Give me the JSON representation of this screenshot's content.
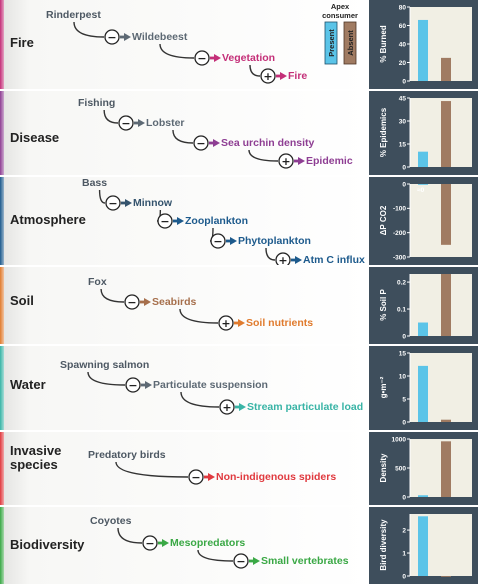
{
  "legend": {
    "title": "Apex consumer",
    "present": "Present",
    "absent": "Absent"
  },
  "colors": {
    "present": "#5bc4e8",
    "absent": "#a07b62",
    "panel": "#3e4e5c",
    "plotbg": "#f1efe4"
  },
  "rows": [
    {
      "name": "fire",
      "title": [
        "Fire"
      ],
      "color": "#c42f78",
      "chain": [
        {
          "label": "Rinderpest",
          "color": "#4d5863"
        },
        {
          "label": "Wildebeest",
          "color": "#5d6974"
        },
        {
          "label": "Vegetation",
          "color": "#c42f78"
        },
        {
          "label": "Fire",
          "color": "#c42f78"
        }
      ],
      "signs": [
        "−",
        "−",
        "+"
      ]
    },
    {
      "name": "disease",
      "title": [
        "Disease"
      ],
      "color": "#8e3e93",
      "chain": [
        {
          "label": "Fishing",
          "color": "#4d5863"
        },
        {
          "label": "Lobster",
          "color": "#5d6974"
        },
        {
          "label": "Sea urchin density",
          "color": "#8e3e93"
        },
        {
          "label": "Epidemic",
          "color": "#8e3e93"
        }
      ],
      "signs": [
        "−",
        "−",
        "+"
      ]
    },
    {
      "name": "atmosphere",
      "title": [
        "Atmosphere"
      ],
      "color": "#1d5a8c",
      "chain": [
        {
          "label": "Bass",
          "color": "#4d5863"
        },
        {
          "label": "Minnow",
          "color": "#34536d"
        },
        {
          "label": "Zooplankton",
          "color": "#1d5a8c"
        },
        {
          "label": "Phytoplankton",
          "color": "#1d5a8c"
        },
        {
          "label": "Atm C influx",
          "color": "#1d5a8c"
        }
      ],
      "signs": [
        "−",
        "−",
        "−",
        "+"
      ]
    },
    {
      "name": "soil",
      "title": [
        "Soil"
      ],
      "color": "#e07b2e",
      "chain": [
        {
          "label": "Fox",
          "color": "#4d5863"
        },
        {
          "label": "Seabirds",
          "color": "#a66f4c"
        },
        {
          "label": "Soil nutrients",
          "color": "#e07b2e"
        }
      ],
      "signs": [
        "−",
        "+"
      ]
    },
    {
      "name": "water",
      "title": [
        "Water"
      ],
      "color": "#39b4a6",
      "chain": [
        {
          "label": "Spawning salmon",
          "color": "#4d5863"
        },
        {
          "label": "Particulate suspension",
          "color": "#5d6974"
        },
        {
          "label": "Stream particulate load",
          "color": "#39b4a6"
        }
      ],
      "signs": [
        "−",
        "+"
      ]
    },
    {
      "name": "invasive",
      "title": [
        "Invasive",
        "species"
      ],
      "color": "#e0393e",
      "chain": [
        {
          "label": "Predatory birds",
          "color": "#4d5863"
        },
        {
          "label": "Non-indigenous spiders",
          "color": "#e0393e"
        }
      ],
      "signs": [
        "−"
      ]
    },
    {
      "name": "biodiversity",
      "title": [
        "Biodiversity"
      ],
      "color": "#3aa845",
      "chain": [
        {
          "label": "Coyotes",
          "color": "#4d5863"
        },
        {
          "label": "Mesopredators",
          "color": "#3aa845"
        },
        {
          "label": "Small vertebrates",
          "color": "#3aa845"
        }
      ],
      "signs": [
        "−",
        "−"
      ]
    }
  ],
  "chart_data": [
    {
      "type": "bar",
      "ylabel": "% Burned",
      "ylim": [
        0,
        80
      ],
      "ticks": [
        0,
        20,
        40,
        60,
        80
      ],
      "tick_labels": [
        "0",
        "20",
        "40",
        "60",
        "80"
      ],
      "values": [
        66,
        25
      ]
    },
    {
      "type": "bar",
      "ylabel": "% Epidemics",
      "ylim": [
        0,
        45
      ],
      "ticks": [
        0,
        15,
        30,
        45
      ],
      "tick_labels": [
        "0",
        "15",
        "30",
        "45"
      ],
      "values": [
        10,
        43
      ]
    },
    {
      "type": "bar",
      "ylabel": "ΔP CO2",
      "ylim": [
        -300,
        0
      ],
      "ticks": [
        0,
        -100,
        -200,
        -300
      ],
      "tick_labels": [
        "0",
        "-100",
        "-200",
        "-300"
      ],
      "values": [
        0,
        -250
      ],
      "annotation": "≈0"
    },
    {
      "type": "bar",
      "ylabel": "% Soil P",
      "ylim": [
        0,
        0.23
      ],
      "ticks": [
        0,
        0.1,
        0.2
      ],
      "tick_labels": [
        "0",
        "0.1",
        "0.2"
      ],
      "values": [
        0.05,
        0.23
      ]
    },
    {
      "type": "bar",
      "ylabel": "g•m⁻²",
      "ylim": [
        0,
        15
      ],
      "ticks": [
        0,
        5,
        10,
        15
      ],
      "tick_labels": [
        "0",
        "5",
        "10",
        "15"
      ],
      "values": [
        12.2,
        0.5
      ]
    },
    {
      "type": "bar",
      "ylabel": "Density",
      "ylim": [
        0,
        1000
      ],
      "ticks": [
        0,
        500,
        1000
      ],
      "tick_labels": [
        "0",
        "500",
        "1000"
      ],
      "values": [
        30,
        960
      ]
    },
    {
      "type": "bar",
      "ylabel": "Bird diversity",
      "ylim": [
        0,
        2.7
      ],
      "ticks": [
        0,
        1,
        2
      ],
      "tick_labels": [
        "0",
        "1",
        "2"
      ],
      "values": [
        2.6,
        0
      ]
    }
  ]
}
